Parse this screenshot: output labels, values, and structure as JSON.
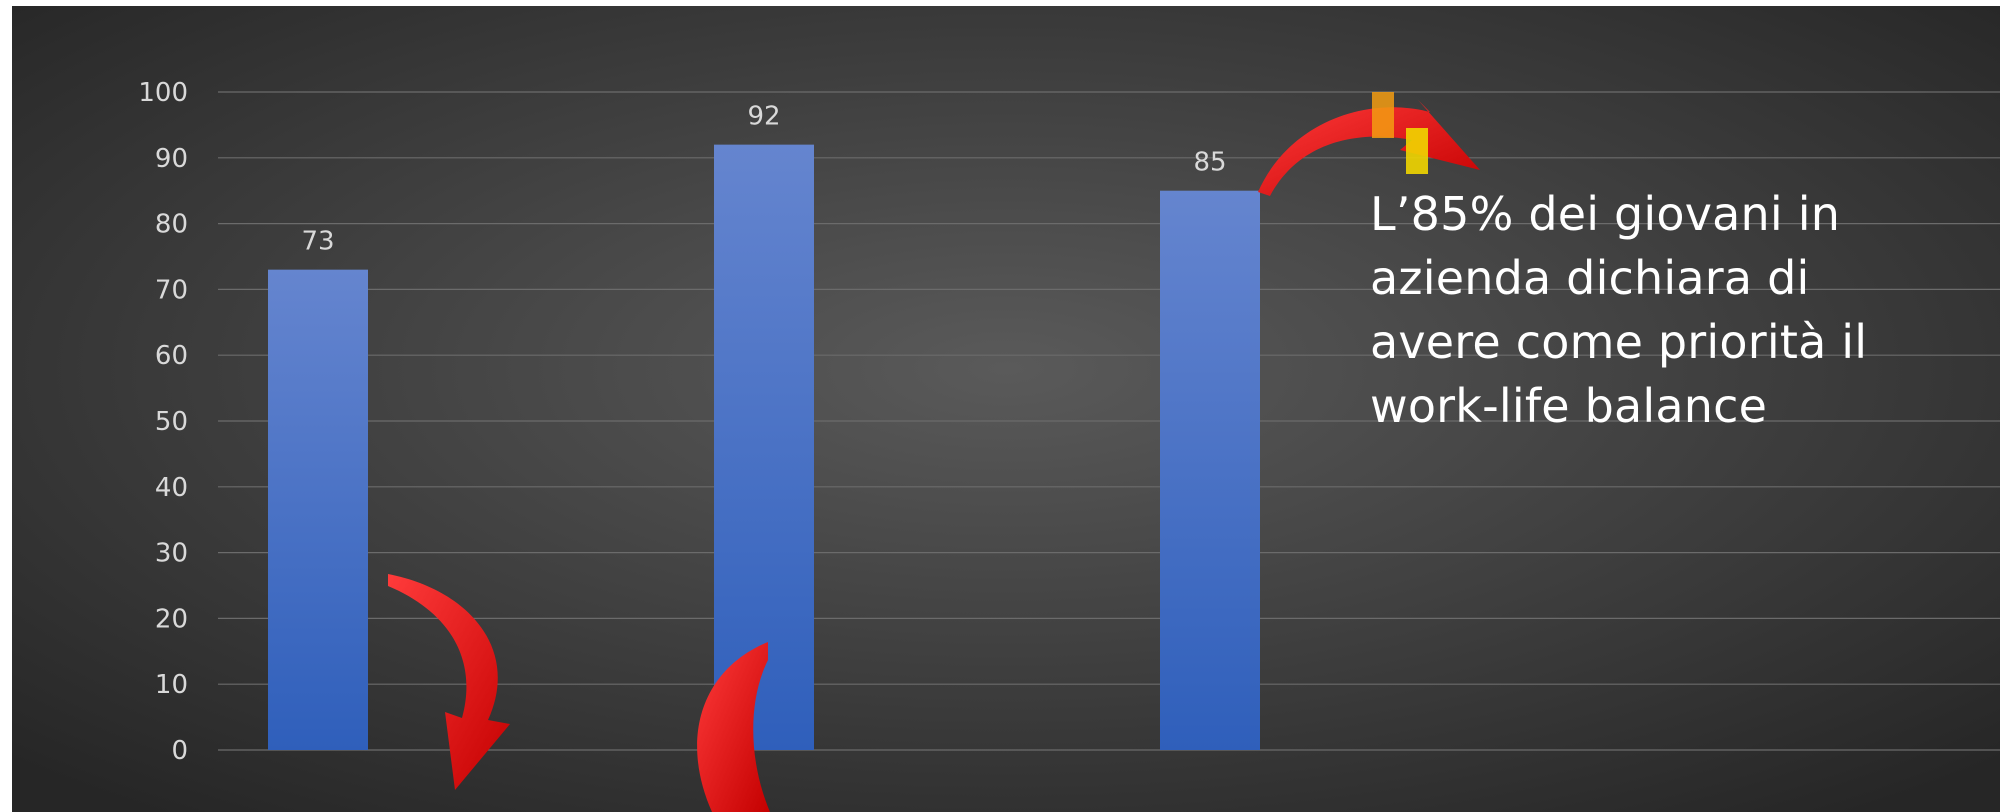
{
  "chart_data": {
    "type": "bar",
    "categories": [
      "",
      "",
      ""
    ],
    "values": [
      73,
      92,
      85
    ],
    "data_labels": [
      "73",
      "92",
      "85"
    ],
    "title": "",
    "xlabel": "",
    "ylabel": "",
    "ylim": [
      0,
      100
    ],
    "yticks": [
      "0",
      "10",
      "20",
      "30",
      "40",
      "50",
      "60",
      "70",
      "80",
      "90",
      "100"
    ],
    "grid": true,
    "legend": "none",
    "bar_color": "#4472c4"
  },
  "annotation": {
    "text": "L’85% dei giovani in azienda dichiara di avere come priorità il work-life balance"
  },
  "colors": {
    "background_center": "#5a5a5a",
    "background_edge": "#262626",
    "gridline": "#6b6b6b",
    "tick_label": "#d9d9d9",
    "arrow": "#ee1c1c",
    "accent_orange": "#f39c12",
    "accent_yellow": "#f1d600"
  },
  "decorations": {
    "arrows": [
      "curved-arrow-icon",
      "curved-arrow-icon",
      "curved-arrow-icon"
    ],
    "accent_marks": [
      "orange-mark",
      "yellow-mark"
    ]
  }
}
